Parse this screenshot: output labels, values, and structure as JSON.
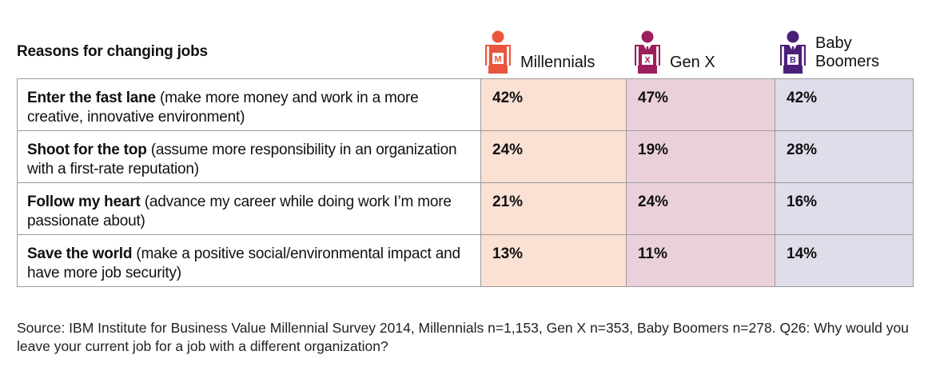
{
  "chart_data": {
    "type": "table",
    "title": "Reasons for changing jobs",
    "generations": [
      {
        "name": "Millennials",
        "badge": "M",
        "color": "#e9563c"
      },
      {
        "name": "Gen X",
        "badge": "X",
        "color": "#9c1f5c"
      },
      {
        "name": "Baby Boomers",
        "name_lines": [
          "Baby",
          "Boomers"
        ],
        "badge": "B",
        "color": "#4a1f78"
      }
    ],
    "rows": [
      {
        "reason": "Enter the fast lane",
        "detail": " (make more money and work in a more creative, innovative environment)",
        "values": [
          "42%",
          "47%",
          "42%"
        ]
      },
      {
        "reason": "Shoot for the top",
        "detail": " (assume more responsibility in an organization with a first-rate reputation)",
        "values": [
          "24%",
          "19%",
          "28%"
        ]
      },
      {
        "reason": "Follow my heart",
        "detail": " (advance my career while doing work I’m more passionate about)",
        "values": [
          "21%",
          "24%",
          "16%"
        ]
      },
      {
        "reason": "Save the world",
        "detail": " (make a positive social/environmental impact and have more job security)",
        "values": [
          "13%",
          "11%",
          "14%"
        ]
      }
    ],
    "cell_colors": [
      "#fbe0d4",
      "#ead0db",
      "#e1dcea"
    ],
    "source": "Source: IBM Institute for Business Value Millennial Survey 2014, Millennials n=1,153, Gen X n=353, Baby Boomers n=278. Q26: Why would you leave your current job for a job with a different organization?"
  }
}
